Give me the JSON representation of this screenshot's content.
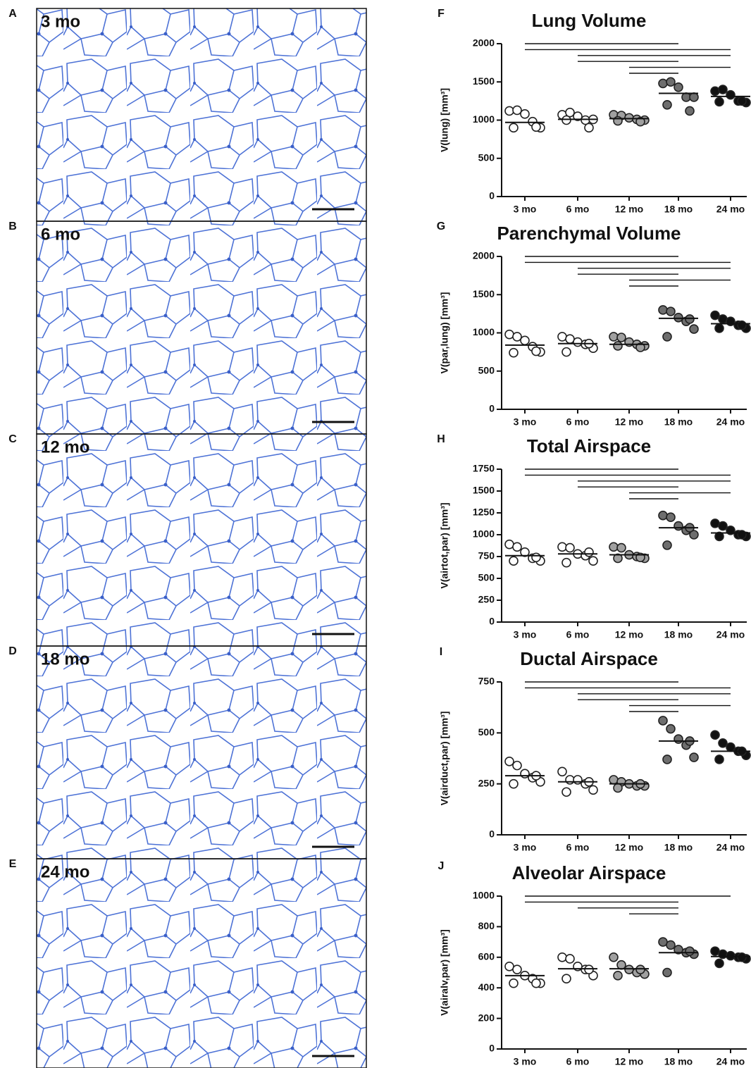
{
  "images": [
    {
      "letter": "A",
      "label": "3 mo"
    },
    {
      "letter": "B",
      "label": "6 mo"
    },
    {
      "letter": "C",
      "label": "12 mo"
    },
    {
      "letter": "D",
      "label": "18 mo"
    },
    {
      "letter": "E",
      "label": "24 mo"
    }
  ],
  "chart_data": [
    {
      "type": "dotplot",
      "panel": "F",
      "title": "Lung Volume",
      "y_label": "V(lung) [mm³]",
      "categories": [
        "3 mo",
        "6 mo",
        "12 mo",
        "18 mo",
        "24 mo"
      ],
      "colors": [
        "#ffffff",
        "#ffffff",
        "#a0a0a0",
        "#6e6e6e",
        "#111111"
      ],
      "groups": [
        [
          1120,
          1130,
          1080,
          980,
          900,
          900,
          910
        ],
        [
          1070,
          1100,
          1050,
          1000,
          1010,
          1000,
          900
        ],
        [
          1070,
          1060,
          1030,
          1010,
          1000,
          990,
          980
        ],
        [
          1480,
          1500,
          1430,
          1300,
          1300,
          1200,
          1120
        ],
        [
          1380,
          1400,
          1330,
          1250,
          1230,
          1240,
          1250
        ]
      ],
      "means": [
        970,
        1010,
        1020,
        1350,
        1310
      ],
      "comparisons": [
        [
          0,
          3
        ],
        [
          0,
          4
        ],
        [
          1,
          4
        ],
        [
          1,
          3
        ],
        [
          2,
          4
        ],
        [
          2,
          3
        ]
      ],
      "ylim": [
        0,
        2000
      ],
      "yticks": [
        0,
        500,
        1000,
        1500,
        2000
      ]
    },
    {
      "type": "dotplot",
      "panel": "G",
      "title": "Parenchymal Volume",
      "y_label": "V(par,lung) [mm³]",
      "categories": [
        "3 mo",
        "6 mo",
        "12 mo",
        "18 mo",
        "24 mo"
      ],
      "colors": [
        "#ffffff",
        "#ffffff",
        "#a0a0a0",
        "#6e6e6e",
        "#111111"
      ],
      "groups": [
        [
          980,
          950,
          900,
          820,
          750,
          740,
          760
        ],
        [
          950,
          920,
          880,
          850,
          800,
          750,
          860
        ],
        [
          950,
          940,
          880,
          850,
          830,
          830,
          810
        ],
        [
          1300,
          1280,
          1200,
          1150,
          1050,
          950,
          1180
        ],
        [
          1230,
          1180,
          1150,
          1100,
          1060,
          1060,
          1100
        ]
      ],
      "means": [
        840,
        860,
        850,
        1190,
        1120
      ],
      "comparisons": [
        [
          0,
          3
        ],
        [
          0,
          4
        ],
        [
          1,
          4
        ],
        [
          1,
          3
        ],
        [
          2,
          4
        ],
        [
          2,
          3
        ]
      ],
      "ylim": [
        0,
        2000
      ],
      "yticks": [
        0,
        500,
        1000,
        1500,
        2000
      ]
    },
    {
      "type": "dotplot",
      "panel": "H",
      "title": "Total Airspace",
      "y_label": "V(airtot,par) [mm³]",
      "categories": [
        "3 mo",
        "6 mo",
        "12 mo",
        "18 mo",
        "24 mo"
      ],
      "colors": [
        "#ffffff",
        "#ffffff",
        "#a0a0a0",
        "#6e6e6e",
        "#111111"
      ],
      "groups": [
        [
          890,
          860,
          800,
          730,
          700,
          700,
          740
        ],
        [
          860,
          850,
          780,
          760,
          700,
          680,
          800
        ],
        [
          860,
          850,
          770,
          750,
          730,
          730,
          740
        ],
        [
          1220,
          1200,
          1100,
          1050,
          1000,
          880,
          1080
        ],
        [
          1130,
          1100,
          1050,
          1000,
          980,
          980,
          1000
        ]
      ],
      "means": [
        760,
        780,
        770,
        1080,
        1020
      ],
      "comparisons": [
        [
          0,
          3
        ],
        [
          0,
          4
        ],
        [
          1,
          4
        ],
        [
          1,
          3
        ],
        [
          2,
          4
        ],
        [
          2,
          3
        ]
      ],
      "ylim": [
        0,
        1750
      ],
      "yticks": [
        0,
        250,
        500,
        750,
        1000,
        1250,
        1500,
        1750
      ]
    },
    {
      "type": "dotplot",
      "panel": "I",
      "title": "Ductal Airspace",
      "y_label": "V(airduct,par) [mm³]",
      "categories": [
        "3 mo",
        "6 mo",
        "12 mo",
        "18 mo",
        "24 mo"
      ],
      "colors": [
        "#ffffff",
        "#ffffff",
        "#a0a0a0",
        "#6e6e6e",
        "#111111"
      ],
      "groups": [
        [
          360,
          340,
          300,
          280,
          260,
          250,
          290
        ],
        [
          310,
          270,
          270,
          250,
          220,
          210,
          260
        ],
        [
          270,
          260,
          250,
          240,
          240,
          230,
          250
        ],
        [
          560,
          520,
          470,
          440,
          380,
          370,
          460
        ],
        [
          490,
          450,
          430,
          410,
          390,
          370,
          410
        ]
      ],
      "means": [
        290,
        260,
        250,
        460,
        410
      ],
      "comparisons": [
        [
          0,
          3
        ],
        [
          0,
          4
        ],
        [
          1,
          4
        ],
        [
          1,
          3
        ],
        [
          2,
          4
        ],
        [
          2,
          3
        ]
      ],
      "ylim": [
        0,
        750
      ],
      "yticks": [
        0,
        250,
        500,
        750
      ]
    },
    {
      "type": "dotplot",
      "panel": "J",
      "title": "Alveolar Airspace",
      "y_label": "V(airalv,par) [mm³]",
      "categories": [
        "3 mo",
        "6 mo",
        "12 mo",
        "18 mo",
        "24 mo"
      ],
      "colors": [
        "#ffffff",
        "#ffffff",
        "#a0a0a0",
        "#6e6e6e",
        "#111111"
      ],
      "groups": [
        [
          540,
          520,
          480,
          460,
          430,
          430,
          430
        ],
        [
          600,
          590,
          540,
          520,
          480,
          460,
          520
        ],
        [
          600,
          550,
          520,
          500,
          490,
          480,
          520
        ],
        [
          700,
          680,
          650,
          630,
          620,
          500,
          640
        ],
        [
          640,
          620,
          610,
          600,
          590,
          560,
          600
        ]
      ],
      "means": [
        480,
        525,
        525,
        630,
        605
      ],
      "comparisons": [
        [
          0,
          4
        ],
        [
          0,
          3
        ],
        [
          1,
          3
        ],
        [
          2,
          3
        ]
      ],
      "ylim": [
        0,
        1000
      ],
      "yticks": [
        0,
        200,
        400,
        600,
        800,
        1000
      ]
    }
  ]
}
